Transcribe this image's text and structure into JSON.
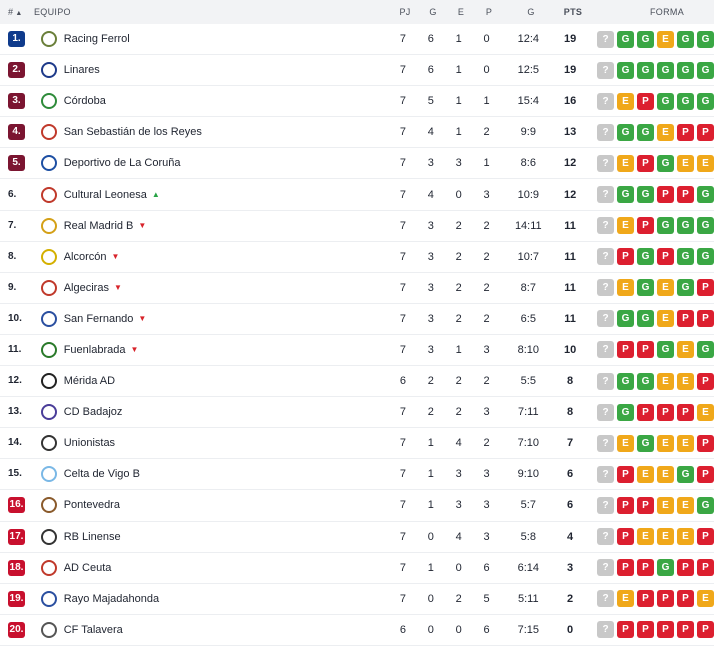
{
  "header": {
    "rank_label": "#",
    "team_label": "EQUIPO",
    "pj_label": "PJ",
    "g_label": "G",
    "e_label": "E",
    "p_label": "P",
    "goals_label": "G",
    "pts_label": "PTS",
    "form_label": "FORMA"
  },
  "colors": {
    "form_G": "#3aa744",
    "form_E": "#f0a81a",
    "form_P": "#dc1f2f",
    "form_next": "#c8c8c8",
    "rank_blue": "#0f3b8c",
    "rank_maroon": "#7b1531",
    "rank_red": "#c8102e",
    "trend_up": "#27a345",
    "trend_down": "#d8232a"
  },
  "rows": [
    {
      "rank": "1.",
      "zone": "blue",
      "team": "Racing Ferrol",
      "trend": "",
      "pj": "7",
      "g": "6",
      "e": "1",
      "p": "0",
      "goals": "12:4",
      "pts": "19",
      "form": [
        "?",
        "G",
        "G",
        "E",
        "G",
        "G"
      ],
      "logo": "#6a7f3a"
    },
    {
      "rank": "2.",
      "zone": "maroon",
      "team": "Linares",
      "trend": "",
      "pj": "7",
      "g": "6",
      "e": "1",
      "p": "0",
      "goals": "12:5",
      "pts": "19",
      "form": [
        "?",
        "G",
        "G",
        "G",
        "G",
        "G"
      ],
      "logo": "#1e3a8a"
    },
    {
      "rank": "3.",
      "zone": "maroon",
      "team": "Córdoba",
      "trend": "",
      "pj": "7",
      "g": "5",
      "e": "1",
      "p": "1",
      "goals": "15:4",
      "pts": "16",
      "form": [
        "?",
        "E",
        "P",
        "G",
        "G",
        "G"
      ],
      "logo": "#2e8b3a"
    },
    {
      "rank": "4.",
      "zone": "maroon",
      "team": "San Sebastián de los Reyes",
      "trend": "",
      "pj": "7",
      "g": "4",
      "e": "1",
      "p": "2",
      "goals": "9:9",
      "pts": "13",
      "form": [
        "?",
        "G",
        "G",
        "E",
        "P",
        "P"
      ],
      "logo": "#c0392b"
    },
    {
      "rank": "5.",
      "zone": "maroon",
      "team": "Deportivo de La Coruña",
      "trend": "",
      "pj": "7",
      "g": "3",
      "e": "3",
      "p": "1",
      "goals": "8:6",
      "pts": "12",
      "form": [
        "?",
        "E",
        "P",
        "G",
        "E",
        "E"
      ],
      "logo": "#1d4fa3"
    },
    {
      "rank": "6.",
      "zone": "plain",
      "team": "Cultural Leonesa",
      "trend": "up",
      "pj": "7",
      "g": "4",
      "e": "0",
      "p": "3",
      "goals": "10:9",
      "pts": "12",
      "form": [
        "?",
        "G",
        "G",
        "P",
        "P",
        "G"
      ],
      "logo": "#c0392b"
    },
    {
      "rank": "7.",
      "zone": "plain",
      "team": "Real Madrid B",
      "trend": "down",
      "pj": "7",
      "g": "3",
      "e": "2",
      "p": "2",
      "goals": "14:11",
      "pts": "11",
      "form": [
        "?",
        "E",
        "P",
        "G",
        "G",
        "G"
      ],
      "logo": "#d4a017"
    },
    {
      "rank": "8.",
      "zone": "plain",
      "team": "Alcorcón",
      "trend": "down",
      "pj": "7",
      "g": "3",
      "e": "2",
      "p": "2",
      "goals": "10:7",
      "pts": "11",
      "form": [
        "?",
        "P",
        "G",
        "P",
        "G",
        "G"
      ],
      "logo": "#d4b000"
    },
    {
      "rank": "9.",
      "zone": "plain",
      "team": "Algeciras",
      "trend": "down",
      "pj": "7",
      "g": "3",
      "e": "2",
      "p": "2",
      "goals": "8:7",
      "pts": "11",
      "form": [
        "?",
        "E",
        "G",
        "E",
        "G",
        "P"
      ],
      "logo": "#c0392b"
    },
    {
      "rank": "10.",
      "zone": "plain",
      "team": "San Fernando",
      "trend": "down",
      "pj": "7",
      "g": "3",
      "e": "2",
      "p": "2",
      "goals": "6:5",
      "pts": "11",
      "form": [
        "?",
        "G",
        "G",
        "E",
        "P",
        "P"
      ],
      "logo": "#2a4fa0"
    },
    {
      "rank": "11.",
      "zone": "plain",
      "team": "Fuenlabrada",
      "trend": "down",
      "pj": "7",
      "g": "3",
      "e": "1",
      "p": "3",
      "goals": "8:10",
      "pts": "10",
      "form": [
        "?",
        "P",
        "P",
        "G",
        "E",
        "G"
      ],
      "logo": "#2a7a2a"
    },
    {
      "rank": "12.",
      "zone": "plain",
      "team": "Mérida AD",
      "trend": "",
      "pj": "6",
      "g": "2",
      "e": "2",
      "p": "2",
      "goals": "5:5",
      "pts": "8",
      "form": [
        "?",
        "G",
        "G",
        "E",
        "E",
        "P"
      ],
      "logo": "#222222"
    },
    {
      "rank": "13.",
      "zone": "plain",
      "team": "CD Badajoz",
      "trend": "",
      "pj": "7",
      "g": "2",
      "e": "2",
      "p": "3",
      "goals": "7:11",
      "pts": "8",
      "form": [
        "?",
        "G",
        "P",
        "P",
        "P",
        "E"
      ],
      "logo": "#4a3d99"
    },
    {
      "rank": "14.",
      "zone": "plain",
      "team": "Unionistas",
      "trend": "",
      "pj": "7",
      "g": "1",
      "e": "4",
      "p": "2",
      "goals": "7:10",
      "pts": "7",
      "form": [
        "?",
        "E",
        "G",
        "E",
        "E",
        "P"
      ],
      "logo": "#333333"
    },
    {
      "rank": "15.",
      "zone": "plain",
      "team": "Celta de Vigo B",
      "trend": "",
      "pj": "7",
      "g": "1",
      "e": "3",
      "p": "3",
      "goals": "9:10",
      "pts": "6",
      "form": [
        "?",
        "P",
        "E",
        "E",
        "G",
        "P"
      ],
      "logo": "#7ab8e6"
    },
    {
      "rank": "16.",
      "zone": "red",
      "team": "Pontevedra",
      "trend": "",
      "pj": "7",
      "g": "1",
      "e": "3",
      "p": "3",
      "goals": "5:7",
      "pts": "6",
      "form": [
        "?",
        "P",
        "P",
        "E",
        "E",
        "G"
      ],
      "logo": "#8a5a2b"
    },
    {
      "rank": "17.",
      "zone": "red",
      "team": "RB Linense",
      "trend": "",
      "pj": "7",
      "g": "0",
      "e": "4",
      "p": "3",
      "goals": "5:8",
      "pts": "4",
      "form": [
        "?",
        "P",
        "E",
        "E",
        "E",
        "P"
      ],
      "logo": "#333333"
    },
    {
      "rank": "18.",
      "zone": "red",
      "team": "AD Ceuta",
      "trend": "",
      "pj": "7",
      "g": "1",
      "e": "0",
      "p": "6",
      "goals": "6:14",
      "pts": "3",
      "form": [
        "?",
        "P",
        "P",
        "G",
        "P",
        "P"
      ],
      "logo": "#c0392b"
    },
    {
      "rank": "19.",
      "zone": "red",
      "team": "Rayo Majadahonda",
      "trend": "",
      "pj": "7",
      "g": "0",
      "e": "2",
      "p": "5",
      "goals": "5:11",
      "pts": "2",
      "form": [
        "?",
        "E",
        "P",
        "P",
        "P",
        "E"
      ],
      "logo": "#2a4fa0"
    },
    {
      "rank": "20.",
      "zone": "red",
      "team": "CF Talavera",
      "trend": "",
      "pj": "6",
      "g": "0",
      "e": "0",
      "p": "6",
      "goals": "7:15",
      "pts": "0",
      "form": [
        "?",
        "P",
        "P",
        "P",
        "P",
        "P"
      ],
      "logo": "#555555"
    }
  ]
}
